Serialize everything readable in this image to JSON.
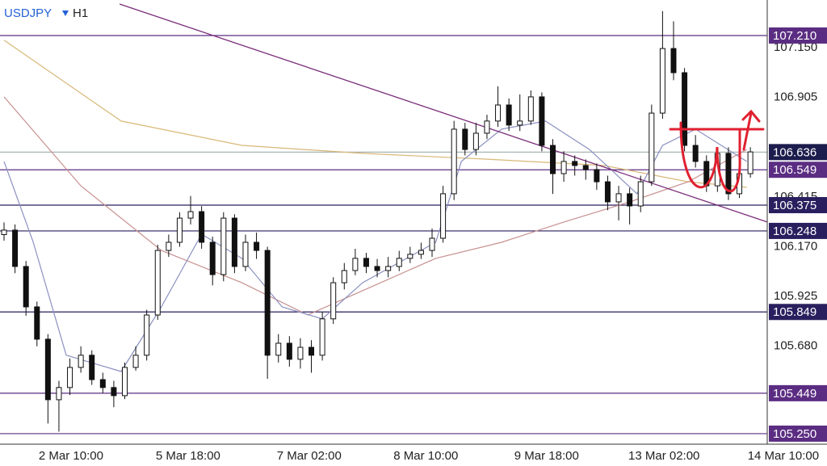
{
  "chart_data": {
    "type": "candlestick",
    "symbol": "USDJPY",
    "timeframe": "H1",
    "x": [
      0,
      3,
      6,
      9,
      12,
      15,
      18,
      21,
      24,
      27,
      30,
      33,
      36,
      39,
      42,
      45,
      48,
      51,
      54,
      57,
      60,
      63,
      66,
      69,
      72,
      75,
      78,
      81,
      84,
      87,
      90,
      93,
      96,
      99,
      102,
      105,
      108,
      111,
      114,
      117,
      120,
      123,
      126,
      129,
      132,
      135,
      138,
      141,
      144,
      147,
      150,
      153,
      156,
      159,
      162,
      165,
      168,
      171,
      174,
      177,
      180,
      183,
      186,
      189,
      192,
      195,
      198,
      201,
      204
    ],
    "open": [
      106.23,
      106.252,
      106.073,
      105.874,
      105.715,
      105.417,
      105.477,
      105.576,
      105.636,
      105.516,
      105.477,
      105.437,
      105.576,
      105.636,
      105.834,
      106.152,
      106.192,
      106.311,
      106.343,
      106.192,
      106.033,
      106.311,
      106.073,
      106.192,
      106.152,
      105.636,
      105.695,
      105.616,
      105.675,
      105.636,
      105.815,
      105.993,
      106.053,
      106.113,
      106.073,
      106.053,
      106.073,
      106.113,
      106.133,
      106.152,
      106.212,
      106.431,
      106.749,
      106.649,
      106.729,
      106.789,
      106.868,
      106.769,
      106.789,
      106.908,
      106.669,
      106.53,
      106.59,
      106.57,
      106.55,
      106.49,
      106.391,
      106.431,
      106.371,
      106.49,
      106.828,
      107.146,
      107.027,
      106.669,
      106.59,
      106.47,
      106.63,
      106.431,
      106.53
    ],
    "high": [
      106.29,
      106.28,
      106.1,
      105.9,
      105.74,
      105.51,
      105.62,
      105.68,
      105.66,
      105.55,
      105.51,
      105.6,
      105.68,
      105.86,
      106.18,
      106.23,
      106.34,
      106.42,
      106.37,
      106.22,
      106.34,
      106.33,
      106.23,
      106.24,
      106.17,
      105.74,
      105.73,
      105.72,
      105.71,
      105.85,
      106.02,
      106.09,
      106.16,
      106.14,
      106.11,
      106.12,
      106.15,
      106.17,
      106.19,
      106.26,
      106.47,
      106.79,
      106.78,
      106.78,
      106.82,
      106.96,
      106.9,
      106.92,
      106.94,
      106.93,
      106.7,
      106.64,
      106.62,
      106.6,
      106.58,
      106.52,
      106.47,
      106.46,
      106.52,
      106.87,
      107.33,
      107.28,
      107.05,
      106.72,
      106.62,
      106.66,
      106.66,
      106.56,
      106.66
    ],
    "low": [
      106.2,
      106.04,
      105.83,
      105.68,
      105.3,
      105.26,
      105.44,
      105.55,
      105.49,
      105.45,
      105.38,
      105.42,
      105.56,
      105.61,
      105.81,
      106.12,
      106.17,
      106.28,
      106.16,
      105.98,
      106.0,
      106.04,
      106.05,
      106.11,
      105.52,
      105.6,
      105.58,
      105.57,
      105.55,
      105.61,
      105.79,
      105.96,
      106.03,
      106.04,
      106.02,
      106.02,
      106.05,
      106.09,
      106.11,
      106.12,
      106.19,
      106.4,
      106.62,
      106.62,
      106.7,
      106.76,
      106.74,
      106.74,
      106.77,
      106.64,
      106.43,
      106.49,
      106.52,
      106.5,
      106.45,
      106.35,
      106.3,
      106.28,
      106.34,
      106.47,
      106.8,
      106.99,
      106.64,
      106.56,
      106.44,
      106.44,
      106.4,
      106.41,
      106.51
    ],
    "close": [
      106.252,
      106.073,
      105.874,
      105.715,
      105.417,
      105.477,
      105.576,
      105.636,
      105.516,
      105.477,
      105.437,
      105.576,
      105.636,
      105.834,
      106.152,
      106.192,
      106.311,
      106.343,
      106.192,
      106.033,
      106.311,
      106.073,
      106.192,
      106.152,
      105.636,
      105.695,
      105.616,
      105.675,
      105.636,
      105.815,
      105.993,
      106.053,
      106.113,
      106.073,
      106.053,
      106.073,
      106.113,
      106.133,
      106.152,
      106.212,
      106.431,
      106.749,
      106.649,
      106.729,
      106.789,
      106.868,
      106.769,
      106.789,
      106.908,
      106.669,
      106.53,
      106.59,
      106.57,
      106.55,
      106.49,
      106.391,
      106.431,
      106.371,
      106.49,
      106.828,
      107.146,
      107.027,
      106.669,
      106.59,
      106.47,
      106.63,
      106.431,
      106.53,
      106.637
    ],
    "up_color": "#ffffff",
    "down_color": "#111111",
    "overlays": [
      {
        "color": "#d8b878",
        "x": [
          0,
          32,
          65,
          98,
          131,
          164,
          187,
          203
        ],
        "values": [
          107.187,
          106.789,
          106.669,
          106.63,
          106.602,
          106.57,
          106.49,
          106.463
        ]
      },
      {
        "color": "#c89090",
        "x": [
          0,
          21,
          43,
          65,
          83,
          98,
          118,
          136,
          153,
          171,
          187,
          203
        ],
        "values": [
          106.908,
          106.47,
          106.152,
          105.993,
          105.834,
          105.954,
          106.113,
          106.192,
          106.292,
          106.391,
          106.49,
          106.649
        ]
      },
      {
        "color": "#8a90c0",
        "x": [
          0,
          8,
          17,
          32,
          43,
          54,
          65,
          76,
          87,
          98,
          118,
          125,
          136,
          148,
          160,
          173,
          180,
          189,
          203
        ],
        "values": [
          106.59,
          106.192,
          105.636,
          105.556,
          105.874,
          106.232,
          106.113,
          105.874,
          105.815,
          105.993,
          106.192,
          106.59,
          106.749,
          106.789,
          106.649,
          106.431,
          106.669,
          106.749,
          106.59
        ]
      }
    ],
    "trendline": {
      "color": "#7a2c7a",
      "x": [
        31.6,
        208.6
      ],
      "values": [
        107.365,
        106.292
      ]
    },
    "levels": [
      {
        "value": 107.21,
        "label": "107.210",
        "color": "#5b2d82"
      },
      {
        "value": 106.636,
        "label": "106.636",
        "color": "#1c1c4d",
        "line": "#a8b4b4"
      },
      {
        "value": 106.549,
        "label": "106.549",
        "color": "#5b2d82"
      },
      {
        "value": 106.375,
        "label": "106.375",
        "color": "#2a1f5e"
      },
      {
        "value": 106.248,
        "label": "106.248",
        "color": "#2a1f5e"
      },
      {
        "value": 105.849,
        "label": "105.849",
        "color": "#2a1f5e"
      },
      {
        "value": 105.449,
        "label": "105.449",
        "color": "#5b2d82"
      },
      {
        "value": 105.25,
        "label": "105.250",
        "color": "#5b2d82"
      }
    ],
    "ylim": [
      105.198,
      107.365
    ],
    "yticks": [
      {
        "value": 107.15,
        "label": "107.150"
      },
      {
        "value": 106.905,
        "label": "106.905"
      },
      {
        "value": 106.415,
        "label": "106.415"
      },
      {
        "value": 106.17,
        "label": "106.170"
      },
      {
        "value": 105.925,
        "label": "105.925"
      },
      {
        "value": 105.68,
        "label": "105.680"
      }
    ],
    "xlim": [
      -1.104,
      208.609
    ],
    "xticks": [
      {
        "value": 18.3,
        "label": "2 Mar 10:00"
      },
      {
        "value": 50.3,
        "label": "5 Mar 18:00"
      },
      {
        "value": 83.4,
        "label": "7 Mar 02:00"
      },
      {
        "value": 115.3,
        "label": "8 Mar 10:00"
      },
      {
        "value": 148.3,
        "label": "9 Mar 18:00"
      },
      {
        "value": 180.4,
        "label": "13 Mar 02:00"
      },
      {
        "value": 213,
        "label": "14 Mar 10:00"
      }
    ]
  }
}
